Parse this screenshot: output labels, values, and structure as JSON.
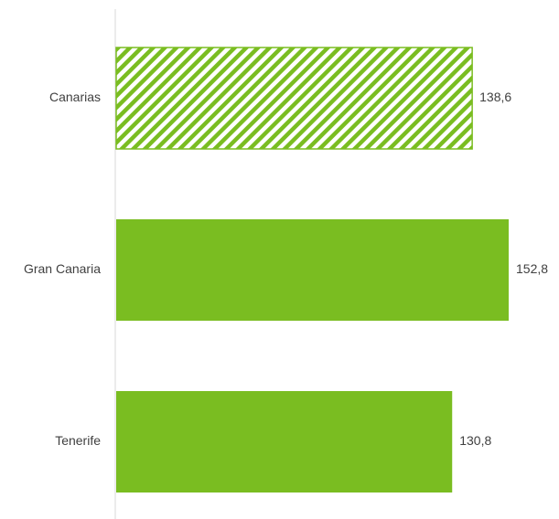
{
  "chart_data": {
    "type": "bar",
    "orientation": "horizontal",
    "categories": [
      "Canarias",
      "Gran Canaria",
      "Tenerife"
    ],
    "values": [
      138.6,
      152.8,
      130.8
    ],
    "value_labels": [
      "138,6",
      "152,8",
      "130,8"
    ],
    "bar_styles": [
      "hatched",
      "solid",
      "solid"
    ],
    "colors": {
      "bar": "#7ABD21",
      "axis": "#D9D9D9",
      "text": "#404040"
    },
    "title": "",
    "xlabel": "",
    "ylabel": "",
    "xlim": [
      0,
      152.8
    ],
    "grid": false,
    "legend": "none"
  }
}
